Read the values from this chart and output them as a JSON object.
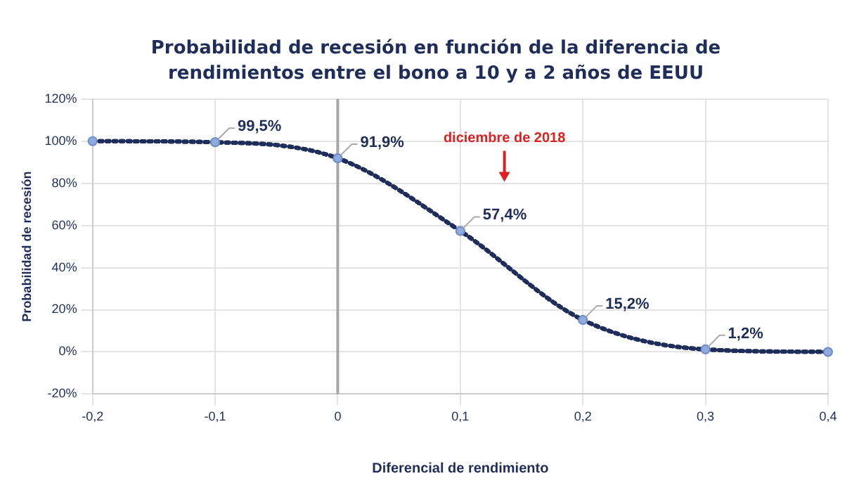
{
  "chart_data": {
    "type": "line",
    "title": "Probabilidad de recesión en función de la diferencia de rendimientos entre el bono a 10 y a 2 años de EEUU",
    "xlabel": "Diferencial de rendimiento",
    "ylabel": "Probabilidad de recesión",
    "x": [
      -0.2,
      -0.1,
      0,
      0.1,
      0.2,
      0.3,
      0.4
    ],
    "series": [
      {
        "color": "#1f2d5a",
        "values": [
          100,
          99.5,
          91.9,
          57.4,
          15.2,
          1.2,
          0
        ],
        "value_labels": [
          null,
          "99,5%",
          "91,9%",
          "57,4%",
          "15,2%",
          "1,2%",
          null
        ]
      }
    ],
    "xlim": [
      -0.2,
      0.4
    ],
    "xticks": [
      {
        "value": -0.2,
        "label": "-0,2"
      },
      {
        "value": -0.1,
        "label": "-0,1"
      },
      {
        "value": 0,
        "label": "0"
      },
      {
        "value": 0.1,
        "label": "0,1"
      },
      {
        "value": 0.2,
        "label": "0,2"
      },
      {
        "value": 0.3,
        "label": "0,3"
      },
      {
        "value": 0.4,
        "label": "0,4"
      }
    ],
    "ylim": [
      -20,
      120
    ],
    "yticks": [
      {
        "value": -20,
        "label": "-20%"
      },
      {
        "value": 0,
        "label": "0%"
      },
      {
        "value": 20,
        "label": "20%"
      },
      {
        "value": 40,
        "label": "40%"
      },
      {
        "value": 60,
        "label": "60%"
      },
      {
        "value": 80,
        "label": "80%"
      },
      {
        "value": 100,
        "label": "100%"
      },
      {
        "value": 120,
        "label": "120%"
      }
    ],
    "ref_lines": [
      {
        "axis": "x",
        "value": 0,
        "color": "#a6a6a6"
      }
    ],
    "annotations": [
      "diciembre de 2018"
    ],
    "grid": true,
    "legend": false,
    "marker": "circle",
    "line_style": "dotted"
  }
}
